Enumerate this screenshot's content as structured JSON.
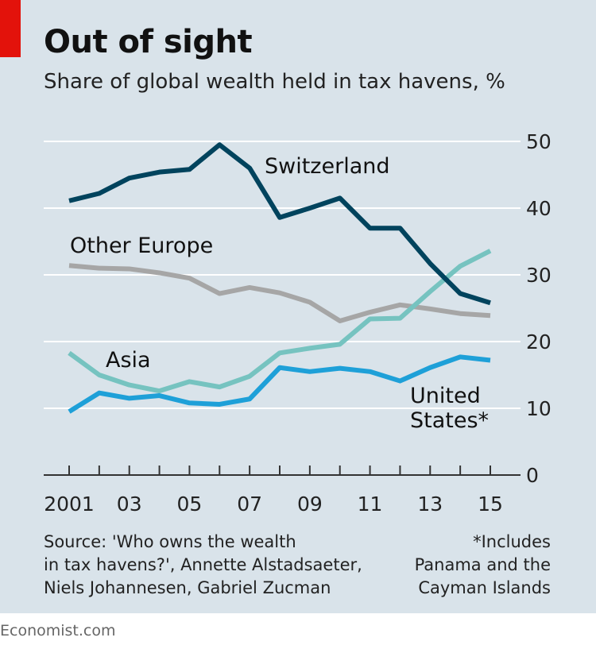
{
  "header": {
    "title": "Out of sight",
    "subtitle": "Share of global wealth held in tax havens, %"
  },
  "chart_data": {
    "type": "line",
    "title": "Out of sight",
    "subtitle": "Share of global wealth held in tax havens, %",
    "x": [
      2001,
      2002,
      2003,
      2004,
      2005,
      2006,
      2007,
      2008,
      2009,
      2010,
      2011,
      2012,
      2013,
      2014,
      2015
    ],
    "xticks": [
      2001,
      2002,
      2003,
      2004,
      2005,
      2006,
      2007,
      2008,
      2009,
      2010,
      2011,
      2012,
      2013,
      2014,
      2015
    ],
    "xtick_labels": [
      "2001",
      "03",
      "05",
      "07",
      "09",
      "11",
      "13",
      "15"
    ],
    "xtick_label_years": [
      2001,
      2003,
      2005,
      2007,
      2009,
      2011,
      2013,
      2015
    ],
    "ylim": [
      0,
      50
    ],
    "yticks": [
      "0",
      "10",
      "20",
      "30",
      "40",
      "50"
    ],
    "grid": true,
    "series": [
      {
        "name": "Switzerland",
        "label_lines": [
          "Switzerland"
        ],
        "color": "#00435d",
        "values": [
          41.1,
          42.2,
          44.5,
          45.4,
          45.8,
          49.5,
          46.0,
          38.6,
          40.0,
          41.5,
          37.0,
          37.0,
          31.7,
          27.2,
          25.8
        ]
      },
      {
        "name": "Other Europe",
        "label_lines": [
          "Other Europe"
        ],
        "color": "#a6a6a6",
        "values": [
          31.4,
          31.0,
          30.9,
          30.3,
          29.5,
          27.2,
          28.1,
          27.3,
          25.9,
          23.1,
          24.4,
          25.5,
          24.9,
          24.2,
          23.9
        ]
      },
      {
        "name": "Asia",
        "label_lines": [
          "Asia"
        ],
        "color": "#76c3c0",
        "values": [
          18.3,
          15.0,
          13.5,
          12.6,
          14.0,
          13.2,
          14.8,
          18.3,
          19.0,
          19.6,
          23.4,
          23.5,
          27.5,
          31.3,
          33.6
        ]
      },
      {
        "name": "United States*",
        "label_lines": [
          "United",
          "States*"
        ],
        "color": "#1ea0d8",
        "values": [
          9.5,
          12.3,
          11.5,
          11.9,
          10.8,
          10.6,
          11.4,
          16.1,
          15.5,
          16.0,
          15.5,
          14.1,
          16.1,
          17.7,
          17.2
        ]
      }
    ]
  },
  "footer": {
    "source_lines": [
      "Source: 'Who owns the wealth",
      "in tax havens?', Annette Alstadsaeter,",
      "Niels Johannesen, Gabriel Zucman"
    ],
    "note_lines": [
      "*Includes",
      "Panama and the",
      "Cayman Islands"
    ],
    "brand": "Economist.com"
  }
}
